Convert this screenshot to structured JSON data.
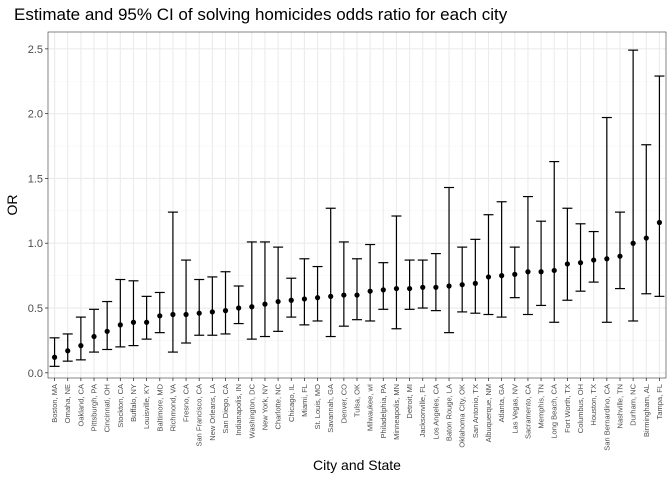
{
  "chart_data": {
    "type": "scatter",
    "title": "Estimate and 95% CI of solving homicides odds ratio for each city",
    "xlabel": "City and State",
    "ylabel": "OR",
    "ylim": [
      -0.04,
      2.63
    ],
    "yticks": [
      "0.0",
      "0.5",
      "1.0",
      "1.5",
      "2.0",
      "2.5"
    ],
    "grid": true,
    "error_bars": true,
    "points": [
      {
        "city": "Boston, MA",
        "or": 0.12,
        "low": 0.05,
        "high": 0.27
      },
      {
        "city": "Omaha, NE",
        "or": 0.17,
        "low": 0.09,
        "high": 0.3
      },
      {
        "city": "Oakland, CA",
        "or": 0.21,
        "low": 0.1,
        "high": 0.43
      },
      {
        "city": "Pittsburgh, PA",
        "or": 0.28,
        "low": 0.16,
        "high": 0.49
      },
      {
        "city": "Cincinnati, OH",
        "or": 0.32,
        "low": 0.18,
        "high": 0.55
      },
      {
        "city": "Stockton, CA",
        "or": 0.37,
        "low": 0.2,
        "high": 0.72
      },
      {
        "city": "Buffalo, NY",
        "or": 0.39,
        "low": 0.21,
        "high": 0.71
      },
      {
        "city": "Louisville, KY",
        "or": 0.39,
        "low": 0.26,
        "high": 0.59
      },
      {
        "city": "Baltimore, MD",
        "or": 0.44,
        "low": 0.31,
        "high": 0.62
      },
      {
        "city": "Richmond, VA",
        "or": 0.45,
        "low": 0.16,
        "high": 1.24
      },
      {
        "city": "Fresno, CA",
        "or": 0.45,
        "low": 0.23,
        "high": 0.87
      },
      {
        "city": "San Francisco, CA",
        "or": 0.46,
        "low": 0.29,
        "high": 0.72
      },
      {
        "city": "New Orleans, LA",
        "or": 0.47,
        "low": 0.29,
        "high": 0.74
      },
      {
        "city": "San Diego, CA",
        "or": 0.48,
        "low": 0.3,
        "high": 0.78
      },
      {
        "city": "Indianapolis, IN",
        "or": 0.5,
        "low": 0.38,
        "high": 0.67
      },
      {
        "city": "Washington, DC",
        "or": 0.51,
        "low": 0.26,
        "high": 1.01
      },
      {
        "city": "New York, NY",
        "or": 0.53,
        "low": 0.28,
        "high": 1.01
      },
      {
        "city": "Charlotte, NC",
        "or": 0.55,
        "low": 0.32,
        "high": 0.97
      },
      {
        "city": "Chicago, IL",
        "or": 0.56,
        "low": 0.43,
        "high": 0.73
      },
      {
        "city": "Miami, FL",
        "or": 0.57,
        "low": 0.37,
        "high": 0.88
      },
      {
        "city": "St. Louis, MO",
        "or": 0.58,
        "low": 0.4,
        "high": 0.82
      },
      {
        "city": "Savannah, GA",
        "or": 0.59,
        "low": 0.28,
        "high": 1.27
      },
      {
        "city": "Denver, CO",
        "or": 0.6,
        "low": 0.36,
        "high": 1.01
      },
      {
        "city": "Tulsa, OK",
        "or": 0.6,
        "low": 0.41,
        "high": 0.88
      },
      {
        "city": "Milwaukee, wI",
        "or": 0.63,
        "low": 0.4,
        "high": 0.99
      },
      {
        "city": "Philadelphia, PA",
        "or": 0.64,
        "low": 0.49,
        "high": 0.85
      },
      {
        "city": "Minneapolis, MN",
        "or": 0.65,
        "low": 0.34,
        "high": 1.21
      },
      {
        "city": "Detroit, MI",
        "or": 0.65,
        "low": 0.49,
        "high": 0.87
      },
      {
        "city": "Jacksonville, FL",
        "or": 0.66,
        "low": 0.5,
        "high": 0.87
      },
      {
        "city": "Los Angeles, CA",
        "or": 0.66,
        "low": 0.48,
        "high": 0.92
      },
      {
        "city": "Baton Rouge, LA",
        "or": 0.67,
        "low": 0.31,
        "high": 1.43
      },
      {
        "city": "Oklahoma City, OK",
        "or": 0.68,
        "low": 0.47,
        "high": 0.97
      },
      {
        "city": "San Antonio, TX",
        "or": 0.69,
        "low": 0.46,
        "high": 1.03
      },
      {
        "city": "Albuquerque, NM",
        "or": 0.74,
        "low": 0.45,
        "high": 1.22
      },
      {
        "city": "Atlanta, GA",
        "or": 0.75,
        "low": 0.43,
        "high": 1.32
      },
      {
        "city": "Las Vegas, NV",
        "or": 0.76,
        "low": 0.58,
        "high": 0.97
      },
      {
        "city": "Sacramento, CA",
        "or": 0.78,
        "low": 0.45,
        "high": 1.36
      },
      {
        "city": "Memphis, TN",
        "or": 0.78,
        "low": 0.52,
        "high": 1.17
      },
      {
        "city": "Long Beach, CA",
        "or": 0.79,
        "low": 0.39,
        "high": 1.63
      },
      {
        "city": "Fort Worth, TX",
        "or": 0.84,
        "low": 0.56,
        "high": 1.27
      },
      {
        "city": "Columbus, OH",
        "or": 0.85,
        "low": 0.63,
        "high": 1.15
      },
      {
        "city": "Houston, TX",
        "or": 0.87,
        "low": 0.7,
        "high": 1.09
      },
      {
        "city": "San Bernardino, CA",
        "or": 0.88,
        "low": 0.39,
        "high": 1.97
      },
      {
        "city": "Nashville, TN",
        "or": 0.9,
        "low": 0.65,
        "high": 1.24
      },
      {
        "city": "Durham, NC",
        "or": 1.0,
        "low": 0.4,
        "high": 2.49
      },
      {
        "city": "Birmingham, AL",
        "or": 1.04,
        "low": 0.61,
        "high": 1.76
      },
      {
        "city": "Tampa, FL",
        "or": 1.16,
        "low": 0.59,
        "high": 2.29
      }
    ],
    "colors": {
      "panel": "#ffffff",
      "grid_major": "#ebebeb",
      "grid_minor": "#f5f5f5",
      "border": "#333333",
      "mark": "#000000",
      "tick_text": "#4d4d4d"
    }
  }
}
